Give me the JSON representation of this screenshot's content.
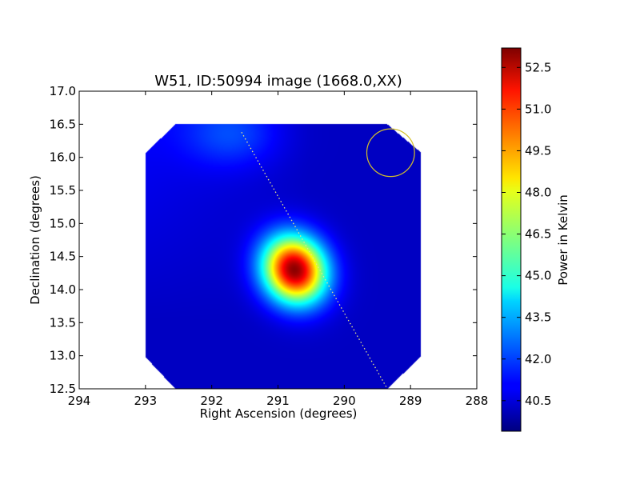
{
  "chart_data": {
    "type": "heatmap",
    "title": "W51, ID:50994 image (1668.0,XX)",
    "xlabel": "Right Ascension (degrees)",
    "ylabel": "Declination (degrees)",
    "xlim": [
      294,
      288
    ],
    "ylim": [
      12.5,
      17.0
    ],
    "x_ticks": [
      "294",
      "293",
      "292",
      "291",
      "290",
      "289",
      "288"
    ],
    "y_ticks": [
      "12.5",
      "13.0",
      "13.5",
      "14.0",
      "14.5",
      "15.0",
      "15.5",
      "16.0",
      "16.5",
      "17.0"
    ],
    "colorbar": {
      "label": "Power in Kelvin",
      "colormap": "jet",
      "range": [
        39.4,
        53.2
      ],
      "ticks": [
        "40.5",
        "42.0",
        "43.5",
        "45.0",
        "46.5",
        "48.0",
        "49.5",
        "51.0",
        "52.5"
      ]
    },
    "data_footprint_corners": [
      [
        292.55,
        16.5
      ],
      [
        293.0,
        16.06
      ],
      [
        293.0,
        12.98
      ],
      [
        292.55,
        12.5
      ],
      [
        289.35,
        12.5
      ],
      [
        288.85,
        12.98
      ],
      [
        288.85,
        16.08
      ],
      [
        289.35,
        16.5
      ]
    ],
    "background_level": 40.3,
    "sources": [
      {
        "ra": 290.75,
        "dec": 14.3,
        "peak": 53.0,
        "sigma_ra": 0.32,
        "sigma_dec": 0.36,
        "angle_deg": -28
      },
      {
        "ra": 291.7,
        "dec": 16.35,
        "peak": 41.8,
        "sigma_ra": 0.5,
        "sigma_dec": 0.35,
        "angle_deg": 0
      }
    ],
    "beam_circle": {
      "ra": 289.3,
      "dec": 16.07,
      "radius_deg": 0.36,
      "color": "#d4c02a"
    },
    "dotted_line": {
      "points": [
        [
          291.55,
          16.38
        ],
        [
          289.35,
          12.5
        ]
      ],
      "color": "#e8e48a"
    },
    "grid": false
  }
}
